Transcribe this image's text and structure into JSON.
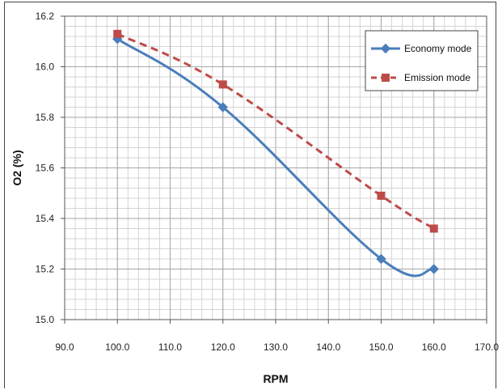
{
  "chart_data": {
    "type": "line",
    "title": "",
    "xlabel": "RPM",
    "ylabel": "O2 (%)",
    "xlim": [
      90,
      170
    ],
    "ylim": [
      15.0,
      16.2
    ],
    "xticks": [
      "90.0",
      "100.0",
      "110.0",
      "120.0",
      "130.0",
      "140.0",
      "150.0",
      "160.0",
      "170.0"
    ],
    "yticks": [
      "15.0",
      "15.2",
      "15.4",
      "15.6",
      "15.8",
      "16.0",
      "16.2"
    ],
    "grid": true,
    "legend_position": "top-right",
    "series": [
      {
        "name": "Economy mode",
        "color": "#4a7ebb",
        "line_style": "solid",
        "marker": "diamond",
        "x": [
          100,
          120,
          150,
          160
        ],
        "y": [
          16.11,
          15.84,
          15.24,
          15.2
        ]
      },
      {
        "name": "Emission mode",
        "color": "#be4b48",
        "line_style": "dashed",
        "marker": "square",
        "x": [
          100,
          120,
          150,
          160
        ],
        "y": [
          16.13,
          15.93,
          15.49,
          15.36
        ]
      }
    ]
  }
}
